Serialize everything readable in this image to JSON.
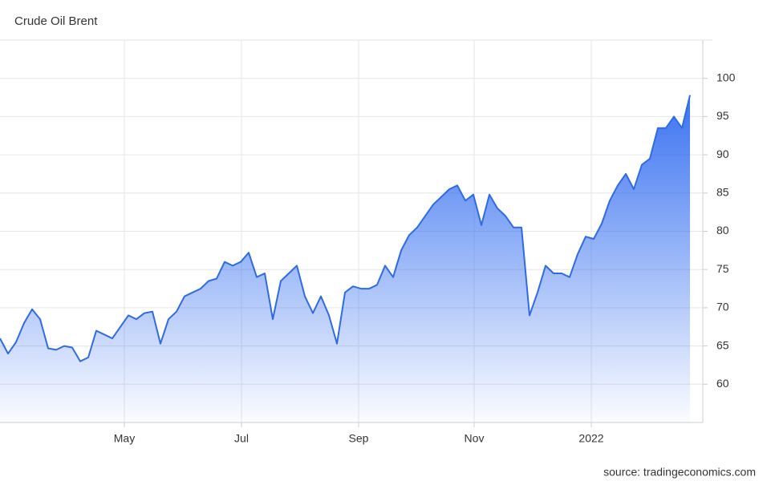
{
  "chart_data": {
    "type": "area",
    "title": "Crude Oil Brent",
    "source": "source: tradingeconomics.com",
    "color": "#2f6be2",
    "values": [
      66,
      64,
      65.5,
      68,
      69.8,
      68.5,
      64.7,
      64.5,
      65,
      64.8,
      63,
      63.5,
      67,
      66.5,
      66,
      67.5,
      69,
      68.5,
      69.3,
      69.5,
      65.3,
      68.5,
      69.5,
      71.5,
      72,
      72.5,
      73.5,
      73.8,
      76,
      75.5,
      76,
      77.2,
      74,
      74.5,
      68.5,
      73.5,
      74.5,
      75.5,
      71.5,
      69.3,
      71.5,
      69,
      65.3,
      72,
      72.8,
      72.5,
      72.5,
      73,
      75.5,
      74,
      77.5,
      79.5,
      80.5,
      82,
      83.5,
      84.5,
      85.5,
      86,
      84,
      84.8,
      80.8,
      84.8,
      83,
      82,
      80.5,
      80.5,
      69,
      72,
      75.5,
      74.5,
      74.5,
      74,
      77,
      79.3,
      79,
      81,
      84,
      86,
      87.5,
      85.5,
      88.7,
      89.5,
      93.5,
      93.5,
      95,
      93.5,
      97.8
    ],
    "xlim": [
      0,
      87.6
    ],
    "xticks": [
      {
        "value": 15.5,
        "label": "May"
      },
      {
        "value": 30.1,
        "label": "Jul"
      },
      {
        "value": 44.7,
        "label": "Sep"
      },
      {
        "value": 59.1,
        "label": "Nov"
      },
      {
        "value": 73.7,
        "label": "2022"
      }
    ],
    "ylim": [
      55,
      105
    ],
    "yticks": [
      60,
      65,
      70,
      75,
      80,
      85,
      90,
      95,
      100
    ],
    "grid": true
  }
}
